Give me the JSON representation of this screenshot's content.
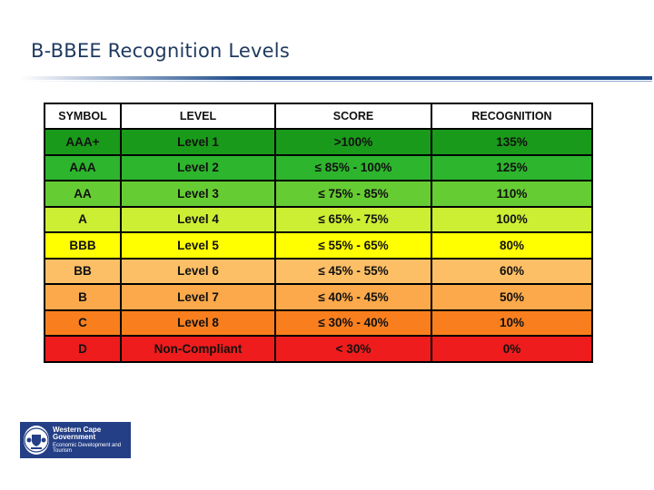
{
  "slide": {
    "title": "B-BBEE Recognition Levels"
  },
  "table": {
    "headers": [
      "SYMBOL",
      "LEVEL",
      "SCORE",
      "RECOGNITION"
    ],
    "rows": [
      {
        "symbol": "AAA+",
        "level": "Level 1",
        "score": ">100%",
        "recognition": "135%",
        "color": "#1a9a1a"
      },
      {
        "symbol": "AAA",
        "level": "Level 2",
        "score": "≤ 85% - 100%",
        "recognition": "125%",
        "color": "#2db52d"
      },
      {
        "symbol": "AA",
        "level": "Level 3",
        "score": "≤ 75% - 85%",
        "recognition": "110%",
        "color": "#66cc33"
      },
      {
        "symbol": "A",
        "level": "Level 4",
        "score": "≤ 65% - 75%",
        "recognition": "100%",
        "color": "#ccee33"
      },
      {
        "symbol": "BBB",
        "level": "Level 5",
        "score": "≤ 55% - 65%",
        "recognition": "80%",
        "color": "#ffff00"
      },
      {
        "symbol": "BB",
        "level": "Level 6",
        "score": "≤ 45% - 55%",
        "recognition": "60%",
        "color": "#fdbf66"
      },
      {
        "symbol": "B",
        "level": "Level 7",
        "score": "≤ 40% - 45%",
        "recognition": "50%",
        "color": "#fba94a"
      },
      {
        "symbol": "C",
        "level": "Level 8",
        "score": "≤ 30% - 40%",
        "recognition": "10%",
        "color": "#f97f1e"
      },
      {
        "symbol": "D",
        "level": "Non-Compliant",
        "score": "< 30%",
        "recognition": "0%",
        "color": "#ee1c1c"
      }
    ]
  },
  "logo": {
    "line1": "Western Cape Government",
    "line2": "Economic Development and Tourism",
    "background": "#243f86",
    "icon": "coat-of-arms-icon"
  }
}
